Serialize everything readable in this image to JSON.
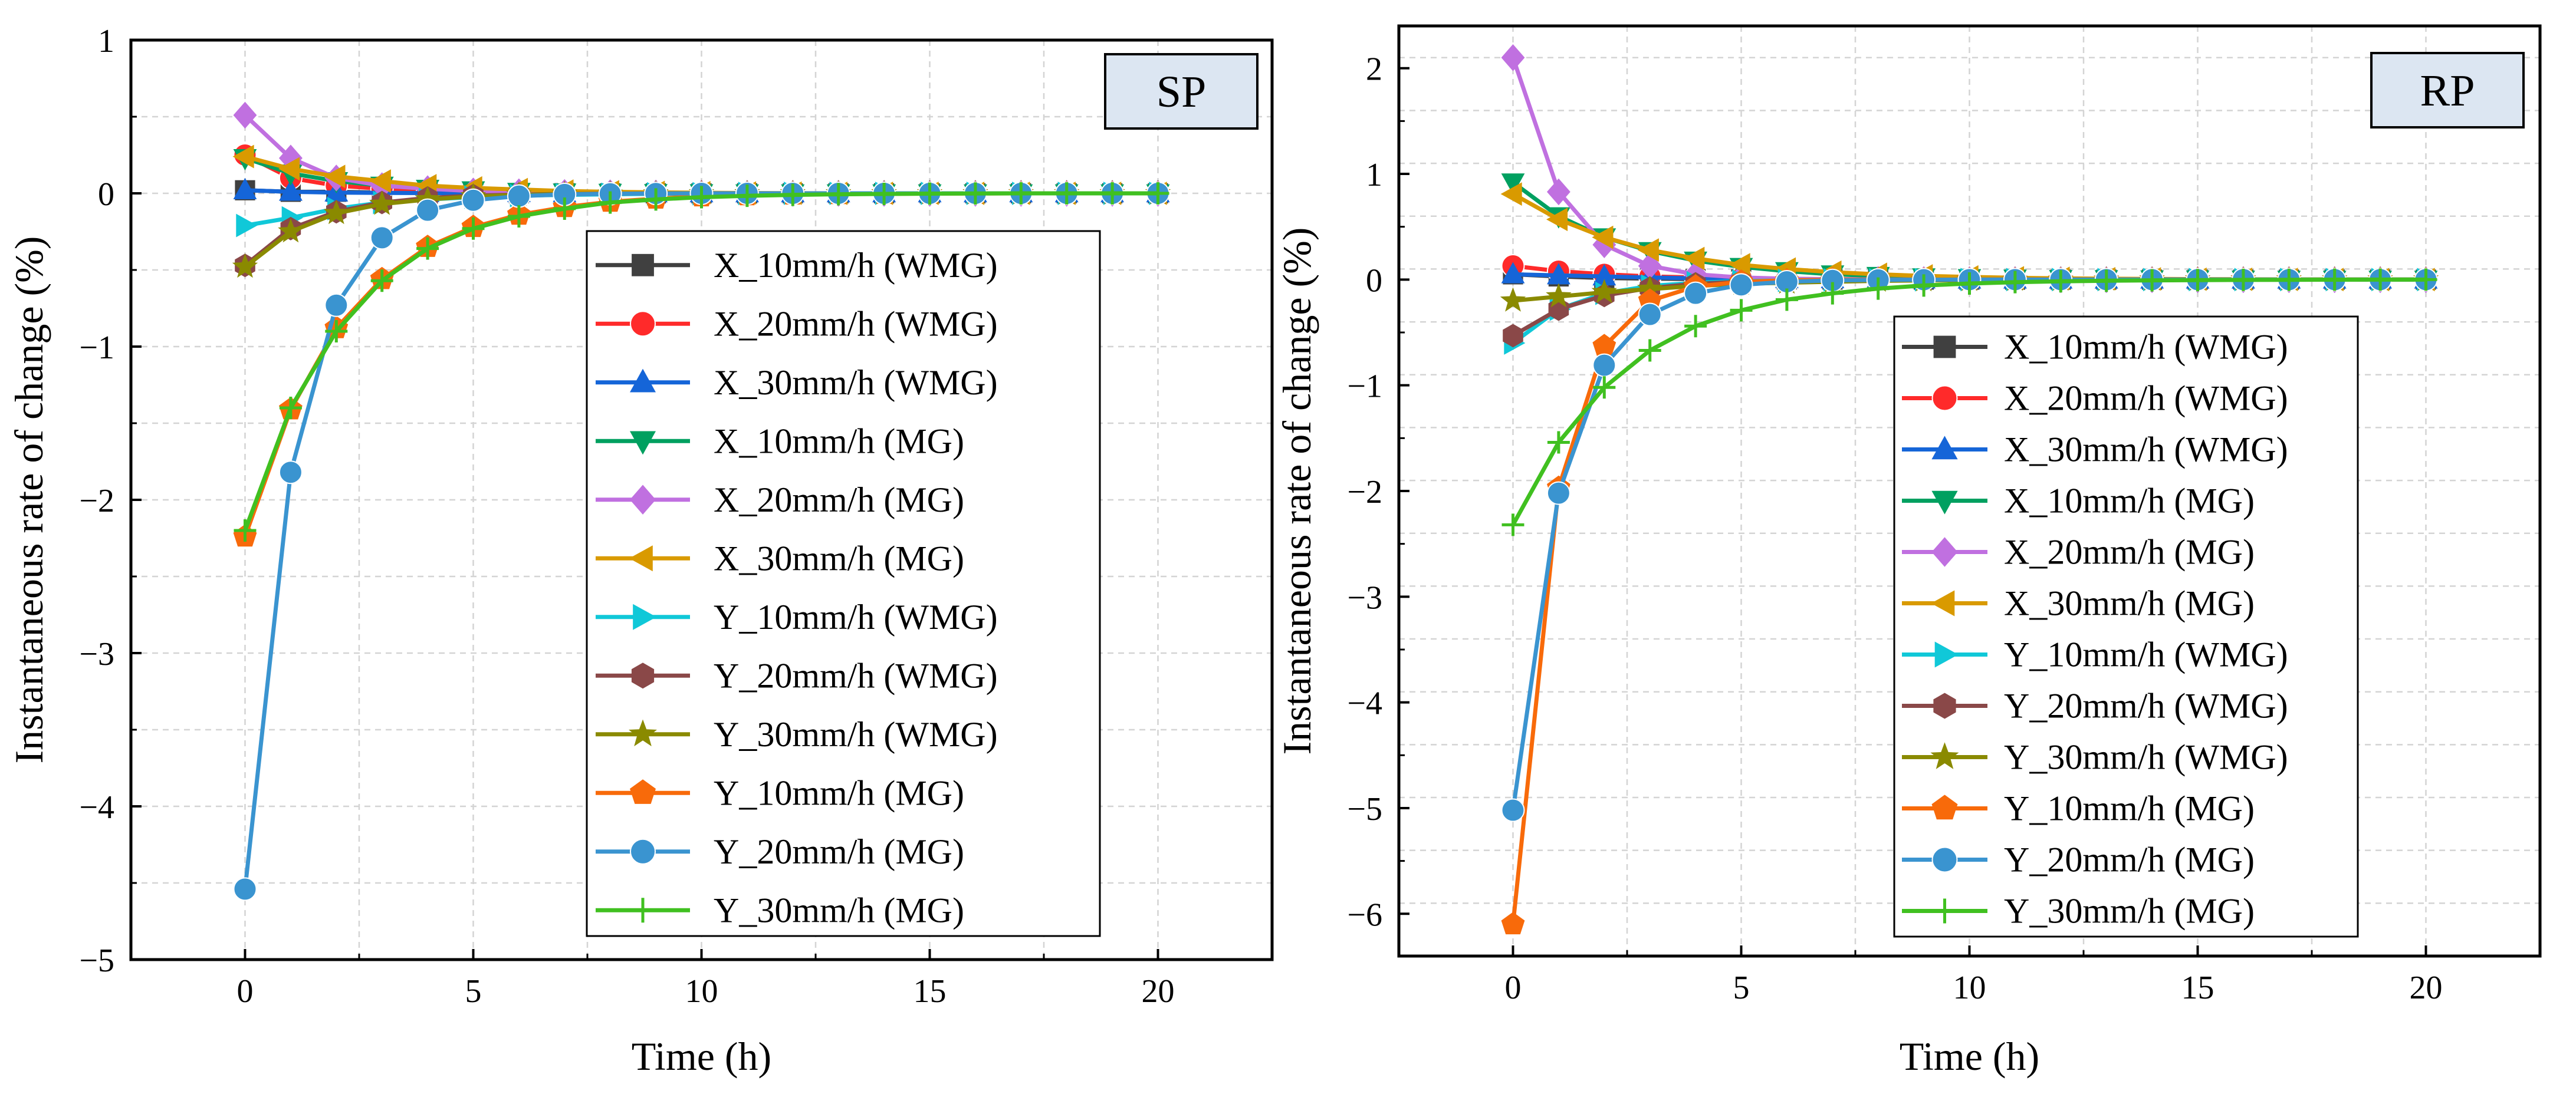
{
  "chart_data": [
    {
      "type": "line",
      "panel_label": "SP",
      "xlabel": "Time (h)",
      "ylabel": "Instantaneous rate of change (%)",
      "xlim": [
        -2.5,
        22.5
      ],
      "ylim": [
        -5,
        1
      ],
      "xticks": [
        0,
        5,
        10,
        15,
        20
      ],
      "yticks": [
        -5,
        -4,
        -3,
        -2,
        -1,
        0,
        1
      ],
      "xtick_labels": [
        "0",
        "5",
        "10",
        "15",
        "20"
      ],
      "ytick_labels": [
        "−5",
        "−4",
        "−3",
        "−2",
        "−1",
        "0",
        "1"
      ],
      "grid": true,
      "legend_position": "center-right",
      "x": [
        0,
        1,
        2,
        3,
        4,
        5,
        6,
        7,
        8,
        9,
        10,
        11,
        12,
        13,
        14,
        15,
        16,
        17,
        18,
        19,
        20
      ],
      "series": [
        {
          "name": "X_10mm/h (WMG)",
          "color": "#404040",
          "marker": "square",
          "values": [
            0.02,
            0.01,
            0.01,
            0.005,
            0.003,
            0.002,
            0.001,
            0.001,
            0,
            0,
            0,
            0,
            0,
            0,
            0,
            0,
            0,
            0,
            0,
            0,
            0
          ]
        },
        {
          "name": "X_20mm/h (WMG)",
          "color": "#ff2a2a",
          "marker": "circle",
          "values": [
            0.25,
            0.1,
            0.05,
            0.03,
            0.015,
            0.01,
            0.005,
            0.003,
            0.002,
            0.001,
            0,
            0,
            0,
            0,
            0,
            0,
            0,
            0,
            0,
            0,
            0
          ]
        },
        {
          "name": "X_30mm/h (WMG)",
          "color": "#1565d8",
          "marker": "triangle-up",
          "values": [
            0.02,
            0.01,
            0.005,
            0.003,
            0.002,
            0.001,
            0.001,
            0,
            0,
            0,
            0,
            0,
            0,
            0,
            0,
            0,
            0,
            0,
            0,
            0,
            0
          ]
        },
        {
          "name": "X_10mm/h (MG)",
          "color": "#00a060",
          "marker": "triangle-down",
          "values": [
            0.23,
            0.13,
            0.08,
            0.05,
            0.03,
            0.02,
            0.01,
            0.006,
            0.004,
            0.002,
            0.001,
            0,
            0,
            0,
            0,
            0,
            0,
            0,
            0,
            0,
            0
          ]
        },
        {
          "name": "X_20mm/h (MG)",
          "color": "#c070e0",
          "marker": "diamond",
          "values": [
            0.51,
            0.23,
            0.1,
            0.05,
            0.03,
            0.015,
            0.01,
            0.005,
            0.003,
            0.002,
            0.001,
            0,
            0,
            0,
            0,
            0,
            0,
            0,
            0,
            0,
            0
          ]
        },
        {
          "name": "X_30mm/h (MG)",
          "color": "#d99a00",
          "marker": "triangle-left",
          "values": [
            0.24,
            0.16,
            0.11,
            0.08,
            0.05,
            0.035,
            0.025,
            0.015,
            0.01,
            0.006,
            0.004,
            0.002,
            0.001,
            0,
            0,
            0,
            0,
            0,
            0,
            0,
            0
          ]
        },
        {
          "name": "Y_10mm/h (WMG)",
          "color": "#10c8d8",
          "marker": "triangle-right",
          "values": [
            -0.21,
            -0.16,
            -0.1,
            -0.06,
            -0.04,
            -0.025,
            -0.015,
            -0.01,
            -0.006,
            -0.003,
            -0.002,
            -0.001,
            0,
            0,
            0,
            0,
            0,
            0,
            0,
            0,
            0
          ]
        },
        {
          "name": "Y_20mm/h (WMG)",
          "color": "#8a4848",
          "marker": "hexagon",
          "values": [
            -0.47,
            -0.23,
            -0.12,
            -0.06,
            -0.03,
            -0.015,
            -0.008,
            -0.004,
            -0.002,
            -0.001,
            0,
            0,
            0,
            0,
            0,
            0,
            0,
            0,
            0,
            0,
            0
          ]
        },
        {
          "name": "Y_30mm/h (WMG)",
          "color": "#8a8a00",
          "marker": "star",
          "values": [
            -0.48,
            -0.25,
            -0.13,
            -0.07,
            -0.04,
            -0.02,
            -0.01,
            -0.005,
            -0.003,
            -0.001,
            0,
            0,
            0,
            0,
            0,
            0,
            0,
            0,
            0,
            0,
            0
          ]
        },
        {
          "name": "Y_10mm/h (MG)",
          "color": "#f86a0a",
          "marker": "pentagon",
          "values": [
            -2.24,
            -1.41,
            -0.88,
            -0.56,
            -0.35,
            -0.22,
            -0.14,
            -0.09,
            -0.055,
            -0.035,
            -0.02,
            -0.013,
            -0.008,
            -0.005,
            -0.003,
            -0.002,
            -0.001,
            0,
            0,
            0,
            0
          ]
        },
        {
          "name": "Y_20mm/h (MG)",
          "color": "#3a94d0",
          "marker": "circle",
          "values": [
            -4.54,
            -1.82,
            -0.73,
            -0.29,
            -0.11,
            -0.045,
            -0.018,
            -0.007,
            -0.003,
            -0.001,
            0,
            0,
            0,
            0,
            0,
            0,
            0,
            0,
            0,
            0,
            0
          ]
        },
        {
          "name": "Y_30mm/h (MG)",
          "color": "#40c020",
          "marker": "plus",
          "values": [
            -2.2,
            -1.4,
            -0.9,
            -0.57,
            -0.36,
            -0.23,
            -0.15,
            -0.1,
            -0.06,
            -0.04,
            -0.025,
            -0.016,
            -0.01,
            -0.006,
            -0.004,
            -0.002,
            -0.001,
            0,
            0,
            0,
            0
          ]
        }
      ]
    },
    {
      "type": "line",
      "panel_label": "RP",
      "xlabel": "Time (h)",
      "ylabel": "Instantaneous rate of change (%)",
      "xlim": [
        -2.5,
        22.5
      ],
      "ylim": [
        -6.4,
        2.4
      ],
      "xticks": [
        0,
        5,
        10,
        15,
        20
      ],
      "yticks": [
        -6,
        -5,
        -4,
        -3,
        -2,
        -1,
        0,
        1,
        2
      ],
      "xtick_labels": [
        "0",
        "5",
        "10",
        "15",
        "20"
      ],
      "ytick_labels": [
        "−6",
        "−5",
        "−4",
        "−3",
        "−2",
        "−1",
        "0",
        "1",
        "2"
      ],
      "grid": true,
      "legend_position": "center-right",
      "x": [
        0,
        1,
        2,
        3,
        4,
        5,
        6,
        7,
        8,
        9,
        10,
        11,
        12,
        13,
        14,
        15,
        16,
        17,
        18,
        19,
        20
      ],
      "series": [
        {
          "name": "X_10mm/h (WMG)",
          "color": "#404040",
          "marker": "square",
          "values": [
            0.05,
            0.03,
            0.015,
            0.01,
            0.005,
            0.003,
            0.002,
            0.001,
            0,
            0,
            0,
            0,
            0,
            0,
            0,
            0,
            0,
            0,
            0,
            0,
            0
          ]
        },
        {
          "name": "X_20mm/h (WMG)",
          "color": "#ff2a2a",
          "marker": "circle",
          "values": [
            0.13,
            0.08,
            0.05,
            0.03,
            0.02,
            0.012,
            0.007,
            0.004,
            0.002,
            0.001,
            0,
            0,
            0,
            0,
            0,
            0,
            0,
            0,
            0,
            0,
            0
          ]
        },
        {
          "name": "X_30mm/h (WMG)",
          "color": "#1565d8",
          "marker": "triangle-up",
          "values": [
            0.05,
            0.04,
            0.03,
            0.02,
            0.012,
            0.008,
            0.005,
            0.003,
            0.002,
            0.001,
            0,
            0,
            0,
            0,
            0,
            0,
            0,
            0,
            0,
            0,
            0
          ]
        },
        {
          "name": "X_10mm/h (MG)",
          "color": "#00a060",
          "marker": "triangle-down",
          "values": [
            0.92,
            0.6,
            0.4,
            0.27,
            0.18,
            0.12,
            0.08,
            0.05,
            0.035,
            0.022,
            0.015,
            0.01,
            0.006,
            0.004,
            0.003,
            0.002,
            0.001,
            0,
            0,
            0,
            0
          ]
        },
        {
          "name": "X_20mm/h (MG)",
          "color": "#c070e0",
          "marker": "diamond",
          "values": [
            2.1,
            0.83,
            0.33,
            0.13,
            0.05,
            0.02,
            0.008,
            0.003,
            0.001,
            0,
            0,
            0,
            0,
            0,
            0,
            0,
            0,
            0,
            0,
            0,
            0
          ]
        },
        {
          "name": "X_30mm/h (MG)",
          "color": "#d99a00",
          "marker": "triangle-left",
          "values": [
            0.81,
            0.57,
            0.4,
            0.28,
            0.2,
            0.14,
            0.1,
            0.07,
            0.05,
            0.035,
            0.025,
            0.017,
            0.012,
            0.008,
            0.006,
            0.004,
            0.003,
            0.002,
            0.001,
            0,
            0
          ]
        },
        {
          "name": "Y_10mm/h (WMG)",
          "color": "#10c8d8",
          "marker": "triangle-right",
          "values": [
            -0.6,
            -0.28,
            -0.13,
            -0.06,
            -0.03,
            -0.014,
            -0.007,
            -0.003,
            -0.002,
            -0.001,
            0,
            0,
            0,
            0,
            0,
            0,
            0,
            0,
            0,
            0,
            0
          ]
        },
        {
          "name": "Y_20mm/h (WMG)",
          "color": "#8a4848",
          "marker": "hexagon",
          "values": [
            -0.53,
            -0.28,
            -0.15,
            -0.08,
            -0.04,
            -0.02,
            -0.01,
            -0.005,
            -0.003,
            -0.001,
            0,
            0,
            0,
            0,
            0,
            0,
            0,
            0,
            0,
            0,
            0
          ]
        },
        {
          "name": "Y_30mm/h (WMG)",
          "color": "#8a8a00",
          "marker": "star",
          "values": [
            -0.2,
            -0.16,
            -0.12,
            -0.09,
            -0.06,
            -0.04,
            -0.03,
            -0.02,
            -0.012,
            -0.008,
            -0.005,
            -0.003,
            -0.002,
            -0.001,
            0,
            0,
            0,
            0,
            0,
            0,
            0
          ]
        },
        {
          "name": "Y_10mm/h (MG)",
          "color": "#f86a0a",
          "marker": "pentagon",
          "values": [
            -6.1,
            -1.97,
            -0.63,
            -0.2,
            -0.065,
            -0.02,
            -0.007,
            -0.002,
            -0.001,
            0,
            0,
            0,
            0,
            0,
            0,
            0,
            0,
            0,
            0,
            0,
            0
          ]
        },
        {
          "name": "Y_20mm/h (MG)",
          "color": "#3a94d0",
          "marker": "circle",
          "values": [
            -5.02,
            -2.02,
            -0.81,
            -0.33,
            -0.13,
            -0.05,
            -0.02,
            -0.008,
            -0.003,
            -0.001,
            0,
            0,
            0,
            0,
            0,
            0,
            0,
            0,
            0,
            0,
            0
          ]
        },
        {
          "name": "Y_30mm/h (MG)",
          "color": "#40c020",
          "marker": "plus",
          "values": [
            -2.32,
            -1.54,
            -1.02,
            -0.67,
            -0.44,
            -0.29,
            -0.19,
            -0.13,
            -0.085,
            -0.056,
            -0.037,
            -0.024,
            -0.016,
            -0.011,
            -0.007,
            -0.005,
            -0.003,
            -0.002,
            -0.001,
            0,
            0
          ]
        }
      ]
    }
  ]
}
